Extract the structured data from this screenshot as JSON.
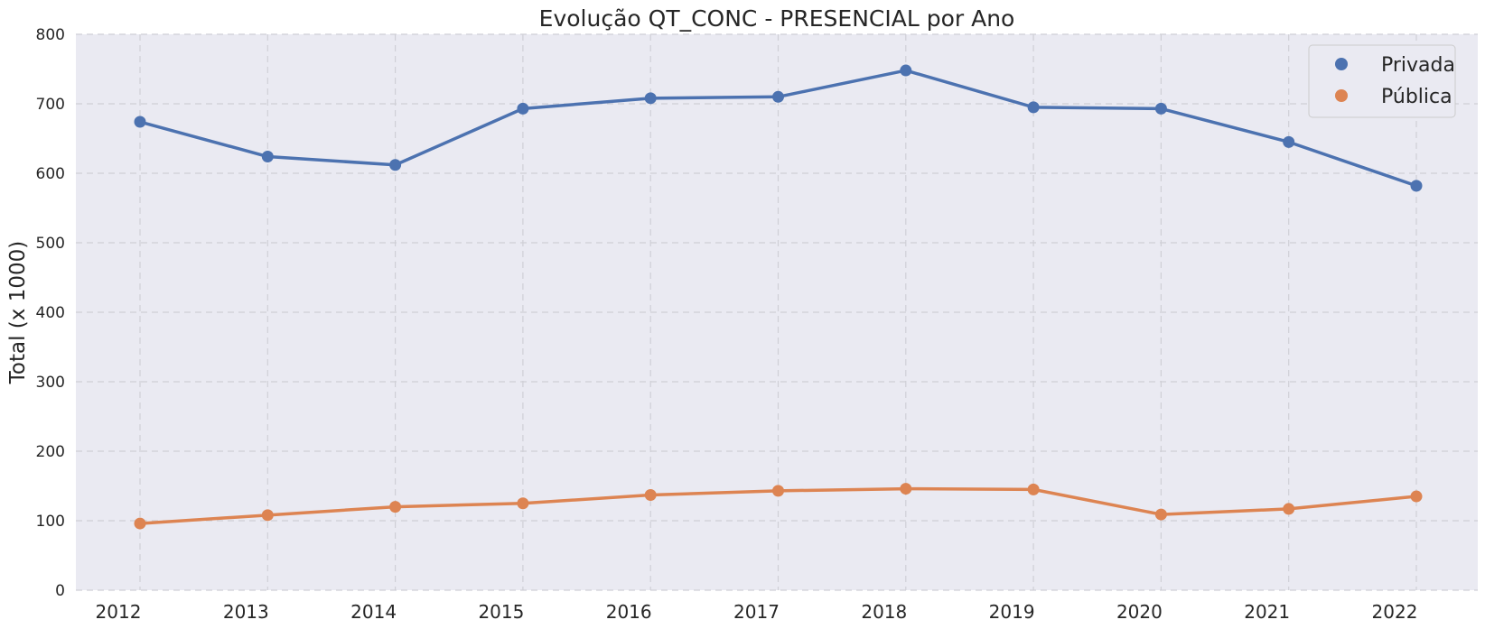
{
  "chart_data": {
    "type": "line",
    "title": "Evolução QT_CONC - PRESENCIAL por Ano",
    "xlabel": "",
    "ylabel": "Total (x 1000)",
    "x": [
      "2012",
      "2013",
      "2014",
      "2015",
      "2016",
      "2017",
      "2018",
      "2019",
      "2020",
      "2021",
      "2022"
    ],
    "yticks": [
      "0",
      "100",
      "200",
      "300",
      "400",
      "500",
      "600",
      "700",
      "800"
    ],
    "ylim": [
      0,
      800
    ],
    "grid": true,
    "legend_position": "top-right",
    "background": "#eaeaf2",
    "series": [
      {
        "name": "Privada",
        "color": "#4c72b0",
        "values": [
          674,
          624,
          612,
          693,
          708,
          710,
          748,
          695,
          693,
          645,
          582
        ]
      },
      {
        "name": "Pública",
        "color": "#dd8452",
        "values": [
          96,
          108,
          120,
          125,
          137,
          143,
          146,
          145,
          109,
          117,
          135
        ]
      }
    ]
  }
}
